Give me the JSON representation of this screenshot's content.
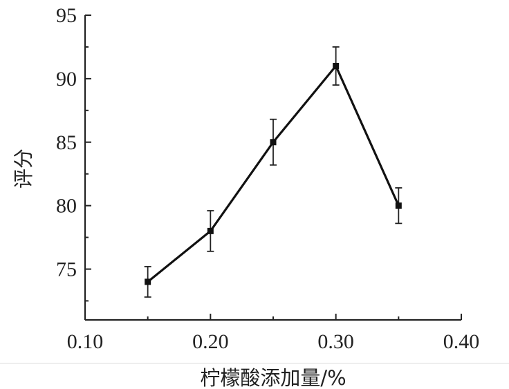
{
  "chart_data": {
    "type": "line",
    "title": "",
    "xlabel": "柠檬酸添加量/%",
    "ylabel": "评分",
    "xlim": [
      0.1,
      0.4
    ],
    "ylim": [
      71,
      95
    ],
    "xticks": [
      0.1,
      0.2,
      0.3,
      0.4
    ],
    "xtick_labels": [
      "0.10",
      "0.20",
      "0.30",
      "0.40"
    ],
    "yticks": [
      75,
      80,
      85,
      90,
      95
    ],
    "ytick_labels": [
      "75",
      "80",
      "85",
      "90",
      "95"
    ],
    "grid": false,
    "series": [
      {
        "x": [
          0.15,
          0.2,
          0.25,
          0.3,
          0.35
        ],
        "y": [
          74,
          78,
          85,
          91,
          80
        ],
        "error": [
          1.2,
          1.6,
          1.8,
          1.5,
          1.4
        ],
        "color": "#111111",
        "marker": "square"
      }
    ]
  }
}
